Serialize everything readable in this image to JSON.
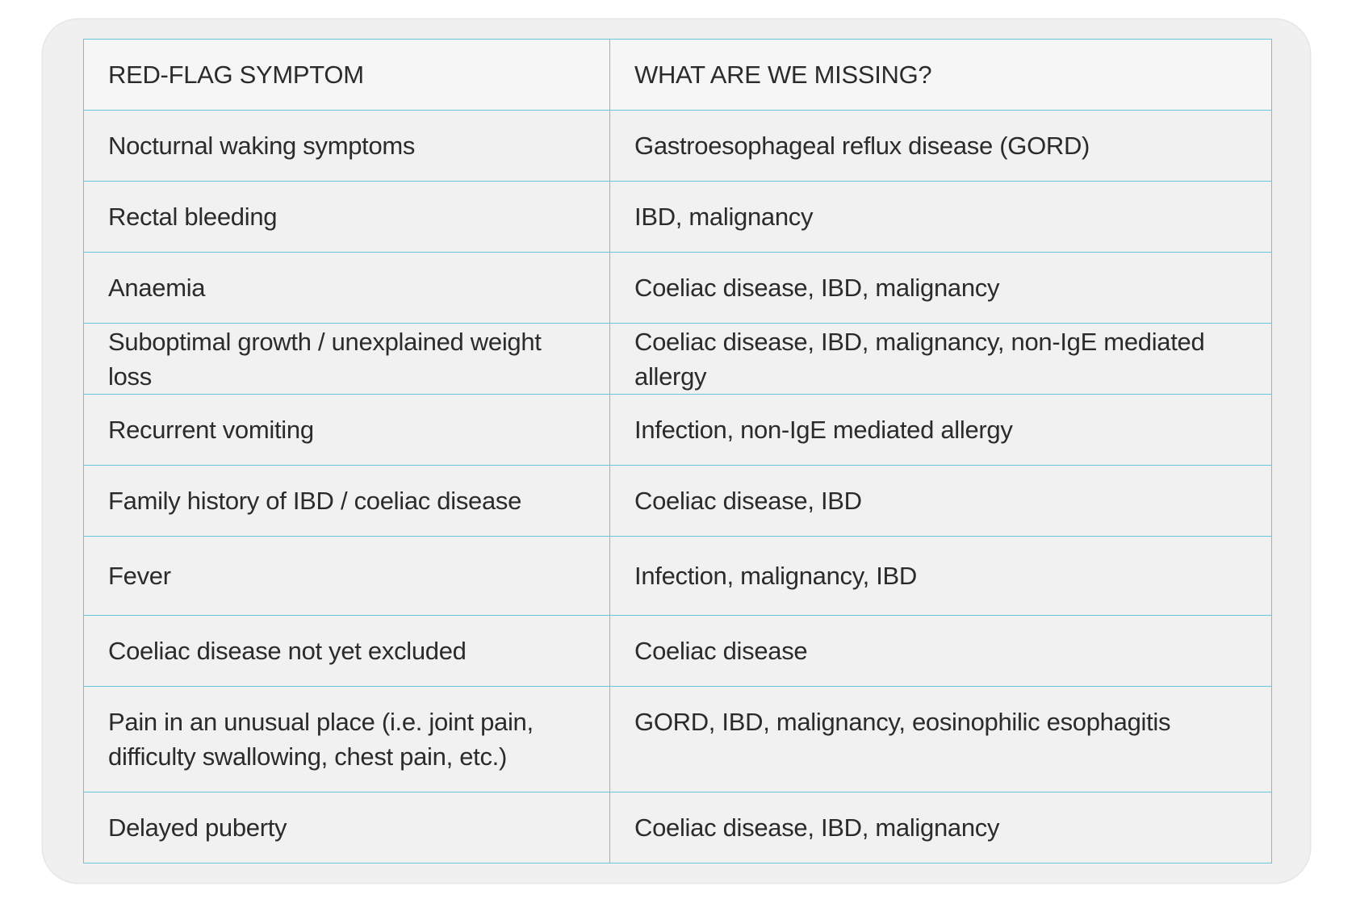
{
  "table": {
    "headers": {
      "symptom": "RED-FLAG SYMPTOM",
      "missing": "WHAT ARE WE MISSING?"
    },
    "rows": [
      {
        "symptom": "Nocturnal waking symptoms",
        "missing": "Gastroesophageal reflux disease (GORD)"
      },
      {
        "symptom": "Rectal bleeding",
        "missing": "IBD, malignancy"
      },
      {
        "symptom": "Anaemia",
        "missing": "Coeliac disease, IBD, malignancy"
      },
      {
        "symptom": "Suboptimal growth / unexplained weight loss",
        "missing": "Coeliac disease, IBD, malignancy, non-IgE mediated allergy"
      },
      {
        "symptom": "Recurrent vomiting",
        "missing": "Infection, non-IgE mediated allergy"
      },
      {
        "symptom": "Family history of IBD / coeliac disease",
        "missing": "Coeliac disease, IBD"
      },
      {
        "symptom": "Fever",
        "missing": "Infection, malignancy, IBD"
      },
      {
        "symptom": "Coeliac disease not yet excluded",
        "missing": "Coeliac disease"
      },
      {
        "symptom": "Pain in an unusual place (i.e. joint pain, difficulty swallowing, chest pain, etc.)",
        "missing": "GORD, IBD, malignancy, eosinophilic esophagitis"
      },
      {
        "symptom": "Delayed puberty",
        "missing": "Coeliac disease, IBD, malignancy"
      }
    ]
  }
}
